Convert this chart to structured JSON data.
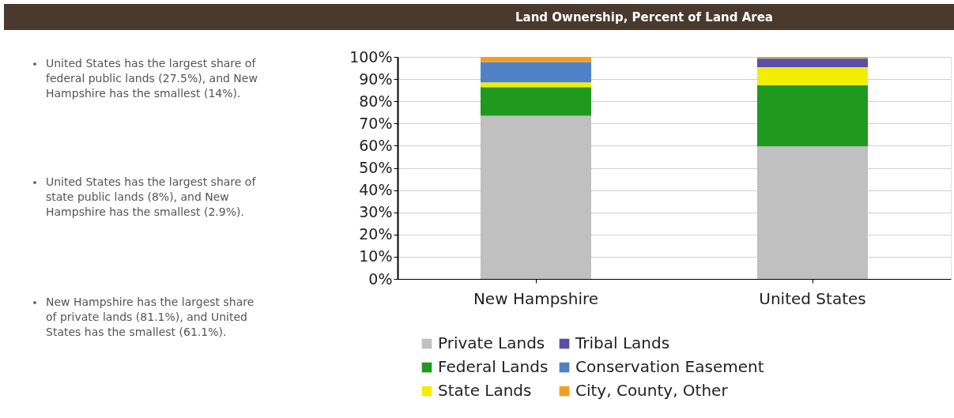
{
  "chart_data": {
    "type": "bar",
    "stacked": true,
    "title": "Land Ownership, Percent of Land Area",
    "categories": [
      "New Hampshire",
      "United States"
    ],
    "series": [
      {
        "name": "Private Lands",
        "color": "#c0c0c0",
        "values": [
          73.5,
          59.7
        ]
      },
      {
        "name": "Federal Lands",
        "color": "#1f9a1f",
        "values": [
          12.9,
          27.6
        ]
      },
      {
        "name": "State Lands",
        "color": "#f2ee00",
        "values": [
          2.1,
          8.1
        ]
      },
      {
        "name": "Tribal Lands",
        "color": "#5b4ea8",
        "values": [
          0,
          3.5
        ]
      },
      {
        "name": "Conservation Easement",
        "color": "#4f81c7",
        "values": [
          9.2,
          0.4
        ]
      },
      {
        "name": "City, County, Other",
        "color": "#f0a020",
        "values": [
          2.3,
          0.7
        ]
      }
    ],
    "ylim": [
      0,
      100
    ],
    "yticks": [
      {
        "value": 0,
        "label": "0%"
      },
      {
        "value": 10,
        "label": "10%"
      },
      {
        "value": 20,
        "label": "20%"
      },
      {
        "value": 30,
        "label": "30%"
      },
      {
        "value": 40,
        "label": "40%"
      },
      {
        "value": 50,
        "label": "50%"
      },
      {
        "value": 60,
        "label": "60%"
      },
      {
        "value": 70,
        "label": "70%"
      },
      {
        "value": 80,
        "label": "80%"
      },
      {
        "value": 90,
        "label": "90%"
      },
      {
        "value": 100,
        "label": "100%"
      }
    ],
    "grid": "y",
    "legend": "bottom",
    "annotations": [
      "United States has the largest share of\nfederal public lands (27.5%), and New\nHampshire has the smallest (14%).",
      "United States has the largest share of\nstate public lands (8%), and New\nHampshire has the smallest (2.9%).",
      "New Hampshire has the largest share\nof private lands (81.1%), and United\nStates has the smallest (61.1%)."
    ]
  }
}
